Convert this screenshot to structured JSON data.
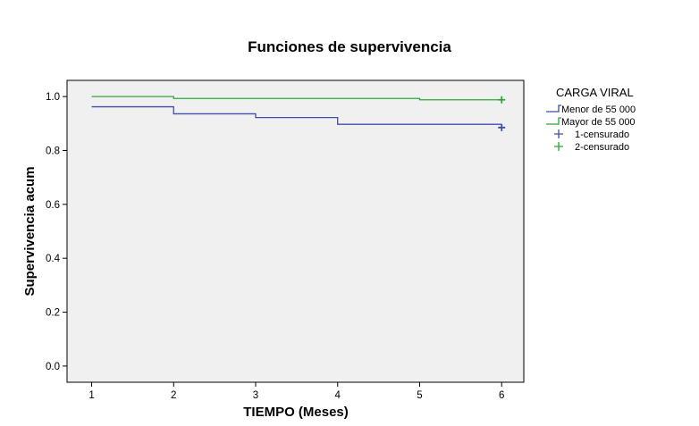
{
  "chart_data": {
    "type": "line",
    "title": "Funciones de supervivencia",
    "xlabel": "TIEMPO (Meses)",
    "ylabel": "Supervivencia acum",
    "xlim": [
      0.7,
      6.27
    ],
    "ylim": [
      -0.06,
      1.06
    ],
    "xticks": [
      1,
      2,
      3,
      4,
      5,
      6
    ],
    "yticks": [
      0.0,
      0.2,
      0.4,
      0.6,
      0.8,
      1.0
    ],
    "ytick_labels": [
      "0.0",
      "0.2",
      "0.4",
      "0.6",
      "0.8",
      "1.0"
    ],
    "step": true,
    "plot_background": "#f0f0f0",
    "legend": {
      "title": "CARGA VIRAL",
      "placement": "right",
      "entries": [
        {
          "label": "Menor de 55 000",
          "kind": "line",
          "color": "#3f4fa8"
        },
        {
          "label": "Mayor de 55 000",
          "kind": "line",
          "color": "#2aa83a"
        },
        {
          "label": "1-censurado",
          "kind": "plus",
          "color": "#3f4fa8"
        },
        {
          "label": "2-censurado",
          "kind": "plus",
          "color": "#2aa83a"
        }
      ]
    },
    "series": [
      {
        "name": "Menor de 55 000",
        "color": "#3f4fa8",
        "points": [
          [
            1,
            0.962
          ],
          [
            2,
            0.936
          ],
          [
            3,
            0.922
          ],
          [
            4,
            0.897
          ],
          [
            6,
            0.897
          ]
        ],
        "censored": [
          [
            6,
            0.885
          ]
        ]
      },
      {
        "name": "Mayor de 55 000",
        "color": "#2aa83a",
        "points": [
          [
            1,
            1.0
          ],
          [
            2,
            0.993
          ],
          [
            5,
            0.988
          ],
          [
            6,
            0.988
          ]
        ],
        "censored": [
          [
            6,
            0.988
          ]
        ]
      }
    ]
  }
}
